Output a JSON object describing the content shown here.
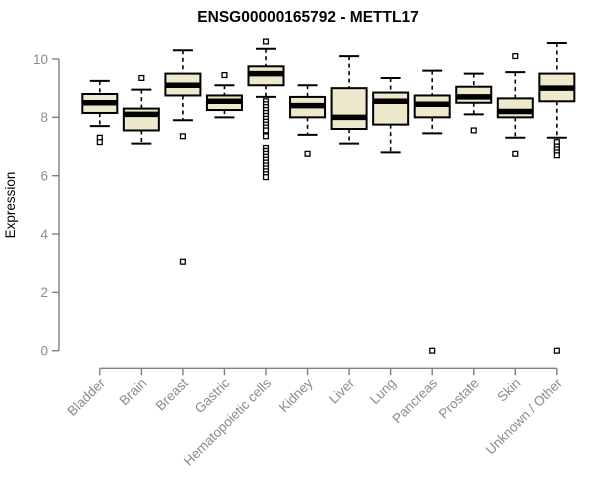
{
  "chart_data": {
    "type": "boxplot",
    "title": "ENSG00000165792 - METTL17",
    "ylabel": "Expression",
    "xlabel": "",
    "yticks": [
      0,
      2,
      4,
      6,
      8,
      10
    ],
    "ylim": [
      0,
      10
    ],
    "grid": false,
    "legend": null,
    "categories": [
      "Bladder",
      "Brain",
      "Breast",
      "Gastric",
      "Hematopoietic cells",
      "Kidney",
      "Liver",
      "Lung",
      "Pancreas",
      "Prostate",
      "Skin",
      "Unknown / Other"
    ],
    "series": [
      {
        "name": "Bladder",
        "whisker_low": 7.7,
        "q1": 8.15,
        "median": 8.5,
        "q3": 8.8,
        "whisker_high": 9.25,
        "outliers": [
          7.3,
          7.15
        ]
      },
      {
        "name": "Brain",
        "whisker_low": 7.1,
        "q1": 7.55,
        "median": 8.1,
        "q3": 8.3,
        "whisker_high": 8.95,
        "outliers": [
          9.35
        ]
      },
      {
        "name": "Breast",
        "whisker_low": 7.9,
        "q1": 8.75,
        "median": 9.1,
        "q3": 9.5,
        "whisker_high": 10.3,
        "outliers": [
          7.35,
          3.05
        ]
      },
      {
        "name": "Gastric",
        "whisker_low": 8.0,
        "q1": 8.25,
        "median": 8.55,
        "q3": 8.75,
        "whisker_high": 9.1,
        "outliers": [
          9.45
        ]
      },
      {
        "name": "Hematopoietic cells",
        "whisker_low": 8.7,
        "q1": 9.1,
        "median": 9.5,
        "q3": 9.75,
        "whisker_high": 10.35,
        "outliers": [
          10.6,
          8.55,
          8.45,
          8.35,
          8.25,
          8.15,
          8.05,
          7.95,
          7.85,
          7.75,
          7.65,
          7.55,
          7.35,
          6.95,
          6.85,
          6.75,
          6.65,
          6.55,
          6.45,
          6.35,
          6.25,
          6.15,
          6.05,
          5.95
        ]
      },
      {
        "name": "Kidney",
        "whisker_low": 7.4,
        "q1": 8.0,
        "median": 8.4,
        "q3": 8.7,
        "whisker_high": 9.1,
        "outliers": [
          6.75
        ]
      },
      {
        "name": "Liver",
        "whisker_low": 7.1,
        "q1": 7.6,
        "median": 8.0,
        "q3": 9.0,
        "whisker_high": 10.1,
        "outliers": []
      },
      {
        "name": "Lung",
        "whisker_low": 6.8,
        "q1": 7.75,
        "median": 8.55,
        "q3": 8.85,
        "whisker_high": 9.35,
        "outliers": []
      },
      {
        "name": "Pancreas",
        "whisker_low": 7.45,
        "q1": 8.0,
        "median": 8.45,
        "q3": 8.75,
        "whisker_high": 9.6,
        "outliers": [
          0
        ]
      },
      {
        "name": "Prostate",
        "whisker_low": 8.1,
        "q1": 8.5,
        "median": 8.7,
        "q3": 9.05,
        "whisker_high": 9.5,
        "outliers": [
          7.55
        ]
      },
      {
        "name": "Skin",
        "whisker_low": 7.3,
        "q1": 8.0,
        "median": 8.2,
        "q3": 8.65,
        "whisker_high": 9.55,
        "outliers": [
          10.1,
          6.75
        ]
      },
      {
        "name": "Unknown / Other",
        "whisker_low": 7.3,
        "q1": 8.55,
        "median": 9.0,
        "q3": 9.5,
        "whisker_high": 10.55,
        "outliers": [
          7.15,
          7.0,
          6.9,
          6.8,
          6.7,
          0
        ]
      }
    ],
    "colors": {
      "box_fill": "#EEE8CD",
      "box_border": "#000000",
      "median": "#000000",
      "whisker": "#000000",
      "outlier_fill": "#ffffff",
      "outlier_border": "#000000",
      "axis": "#7F7F7F",
      "tick_label": "#8B8B8B",
      "title": "#000000"
    }
  }
}
